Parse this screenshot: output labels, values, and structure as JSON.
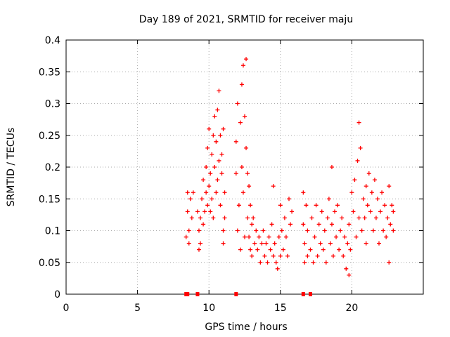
{
  "chart_data": {
    "type": "scatter",
    "title": "Day 189 of 2021, SRMTID for receiver maju",
    "xlabel": "GPS time / hours",
    "ylabel": "SRMTID / TECUs",
    "xlim": [
      0,
      25
    ],
    "ylim": [
      0,
      0.4
    ],
    "xticks": [
      0,
      5,
      10,
      15,
      20
    ],
    "xtick_labels": [
      "0",
      "5",
      "10",
      "15",
      "20"
    ],
    "yticks": [
      0,
      0.05,
      0.1,
      0.15,
      0.2,
      0.25,
      0.3,
      0.35,
      0.4
    ],
    "ytick_labels": [
      "0",
      "0.05",
      "0.1",
      "0.15",
      "0.2",
      "0.25",
      "0.3",
      "0.35",
      "0.4"
    ],
    "grid": true,
    "marker": "+",
    "color": "#ff0000",
    "zero_markers_x": [
      8.4,
      8.5,
      9.2,
      11.9,
      16.6,
      17.1
    ],
    "series": [
      {
        "name": "SRMTID",
        "points": [
          [
            8.4,
            0.09
          ],
          [
            8.5,
            0.16
          ],
          [
            8.5,
            0.13
          ],
          [
            8.6,
            0.1
          ],
          [
            8.6,
            0.08
          ],
          [
            8.7,
            0.15
          ],
          [
            8.8,
            0.12
          ],
          [
            8.9,
            0.16
          ],
          [
            9.2,
            0.13
          ],
          [
            9.3,
            0.1
          ],
          [
            9.3,
            0.07
          ],
          [
            9.4,
            0.12
          ],
          [
            9.4,
            0.08
          ],
          [
            9.5,
            0.15
          ],
          [
            9.6,
            0.18
          ],
          [
            9.6,
            0.11
          ],
          [
            9.7,
            0.13
          ],
          [
            9.8,
            0.16
          ],
          [
            9.8,
            0.2
          ],
          [
            9.9,
            0.23
          ],
          [
            9.9,
            0.14
          ],
          [
            10.0,
            0.26
          ],
          [
            10.0,
            0.17
          ],
          [
            10.1,
            0.19
          ],
          [
            10.1,
            0.13
          ],
          [
            10.2,
            0.15
          ],
          [
            10.2,
            0.22
          ],
          [
            10.3,
            0.25
          ],
          [
            10.3,
            0.12
          ],
          [
            10.4,
            0.28
          ],
          [
            10.4,
            0.2
          ],
          [
            10.5,
            0.24
          ],
          [
            10.5,
            0.16
          ],
          [
            10.6,
            0.29
          ],
          [
            10.6,
            0.18
          ],
          [
            10.7,
            0.32
          ],
          [
            10.7,
            0.21
          ],
          [
            10.8,
            0.25
          ],
          [
            10.8,
            0.14
          ],
          [
            10.9,
            0.22
          ],
          [
            10.9,
            0.19
          ],
          [
            11.0,
            0.26
          ],
          [
            11.0,
            0.1
          ],
          [
            11.0,
            0.08
          ],
          [
            11.1,
            0.16
          ],
          [
            11.1,
            0.12
          ],
          [
            11.9,
            0.24
          ],
          [
            11.9,
            0.19
          ],
          [
            12.0,
            0.3
          ],
          [
            12.0,
            0.1
          ],
          [
            12.1,
            0.14
          ],
          [
            12.2,
            0.27
          ],
          [
            12.2,
            0.07
          ],
          [
            12.3,
            0.33
          ],
          [
            12.3,
            0.2
          ],
          [
            12.4,
            0.36
          ],
          [
            12.4,
            0.16
          ],
          [
            12.5,
            0.28
          ],
          [
            12.5,
            0.09
          ],
          [
            12.6,
            0.37
          ],
          [
            12.6,
            0.23
          ],
          [
            12.7,
            0.19
          ],
          [
            12.7,
            0.12
          ],
          [
            12.8,
            0.17
          ],
          [
            12.8,
            0.09
          ],
          [
            12.9,
            0.14
          ],
          [
            12.9,
            0.07
          ],
          [
            13.0,
            0.11
          ],
          [
            13.0,
            0.06
          ],
          [
            13.1,
            0.12
          ],
          [
            13.2,
            0.08
          ],
          [
            13.3,
            0.1
          ],
          [
            13.4,
            0.07
          ],
          [
            13.5,
            0.09
          ],
          [
            13.6,
            0.05
          ],
          [
            13.7,
            0.08
          ],
          [
            13.8,
            0.1
          ],
          [
            13.9,
            0.06
          ],
          [
            14.0,
            0.08
          ],
          [
            14.1,
            0.05
          ],
          [
            14.2,
            0.09
          ],
          [
            14.3,
            0.07
          ],
          [
            14.4,
            0.11
          ],
          [
            14.5,
            0.17
          ],
          [
            14.5,
            0.06
          ],
          [
            14.6,
            0.08
          ],
          [
            14.7,
            0.05
          ],
          [
            14.8,
            0.04
          ],
          [
            14.9,
            0.09
          ],
          [
            15.0,
            0.14
          ],
          [
            15.0,
            0.06
          ],
          [
            15.1,
            0.1
          ],
          [
            15.2,
            0.07
          ],
          [
            15.3,
            0.12
          ],
          [
            15.4,
            0.09
          ],
          [
            15.5,
            0.06
          ],
          [
            15.6,
            0.15
          ],
          [
            15.7,
            0.11
          ],
          [
            15.8,
            0.13
          ],
          [
            16.6,
            0.16
          ],
          [
            16.6,
            0.11
          ],
          [
            16.7,
            0.08
          ],
          [
            16.7,
            0.05
          ],
          [
            16.8,
            0.14
          ],
          [
            16.9,
            0.06
          ],
          [
            16.9,
            0.1
          ],
          [
            17.1,
            0.07
          ],
          [
            17.2,
            0.12
          ],
          [
            17.3,
            0.05
          ],
          [
            17.4,
            0.09
          ],
          [
            17.5,
            0.14
          ],
          [
            17.6,
            0.06
          ],
          [
            17.7,
            0.11
          ],
          [
            17.8,
            0.08
          ],
          [
            17.9,
            0.13
          ],
          [
            18.0,
            0.07
          ],
          [
            18.1,
            0.1
          ],
          [
            18.2,
            0.05
          ],
          [
            18.3,
            0.12
          ],
          [
            18.4,
            0.15
          ],
          [
            18.5,
            0.08
          ],
          [
            18.6,
            0.2
          ],
          [
            18.6,
            0.11
          ],
          [
            18.7,
            0.06
          ],
          [
            18.8,
            0.13
          ],
          [
            18.9,
            0.09
          ],
          [
            19.0,
            0.14
          ],
          [
            19.1,
            0.07
          ],
          [
            19.2,
            0.1
          ],
          [
            19.3,
            0.12
          ],
          [
            19.4,
            0.06
          ],
          [
            19.5,
            0.09
          ],
          [
            19.6,
            0.04
          ],
          [
            19.7,
            0.08
          ],
          [
            19.8,
            0.03
          ],
          [
            19.8,
            0.11
          ],
          [
            19.9,
            0.07
          ],
          [
            20.0,
            0.16
          ],
          [
            20.1,
            0.13
          ],
          [
            20.2,
            0.18
          ],
          [
            20.3,
            0.09
          ],
          [
            20.4,
            0.21
          ],
          [
            20.5,
            0.27
          ],
          [
            20.5,
            0.12
          ],
          [
            20.6,
            0.23
          ],
          [
            20.7,
            0.1
          ],
          [
            20.8,
            0.15
          ],
          [
            20.9,
            0.12
          ],
          [
            21.0,
            0.17
          ],
          [
            21.0,
            0.08
          ],
          [
            21.1,
            0.14
          ],
          [
            21.2,
            0.19
          ],
          [
            21.3,
            0.13
          ],
          [
            21.4,
            0.16
          ],
          [
            21.5,
            0.1
          ],
          [
            21.6,
            0.18
          ],
          [
            21.7,
            0.12
          ],
          [
            21.8,
            0.15
          ],
          [
            21.9,
            0.08
          ],
          [
            22.0,
            0.13
          ],
          [
            22.1,
            0.16
          ],
          [
            22.2,
            0.1
          ],
          [
            22.3,
            0.14
          ],
          [
            22.4,
            0.09
          ],
          [
            22.5,
            0.12
          ],
          [
            22.6,
            0.17
          ],
          [
            22.6,
            0.05
          ],
          [
            22.7,
            0.11
          ],
          [
            22.8,
            0.14
          ],
          [
            22.9,
            0.1
          ],
          [
            22.9,
            0.13
          ]
        ]
      }
    ]
  }
}
